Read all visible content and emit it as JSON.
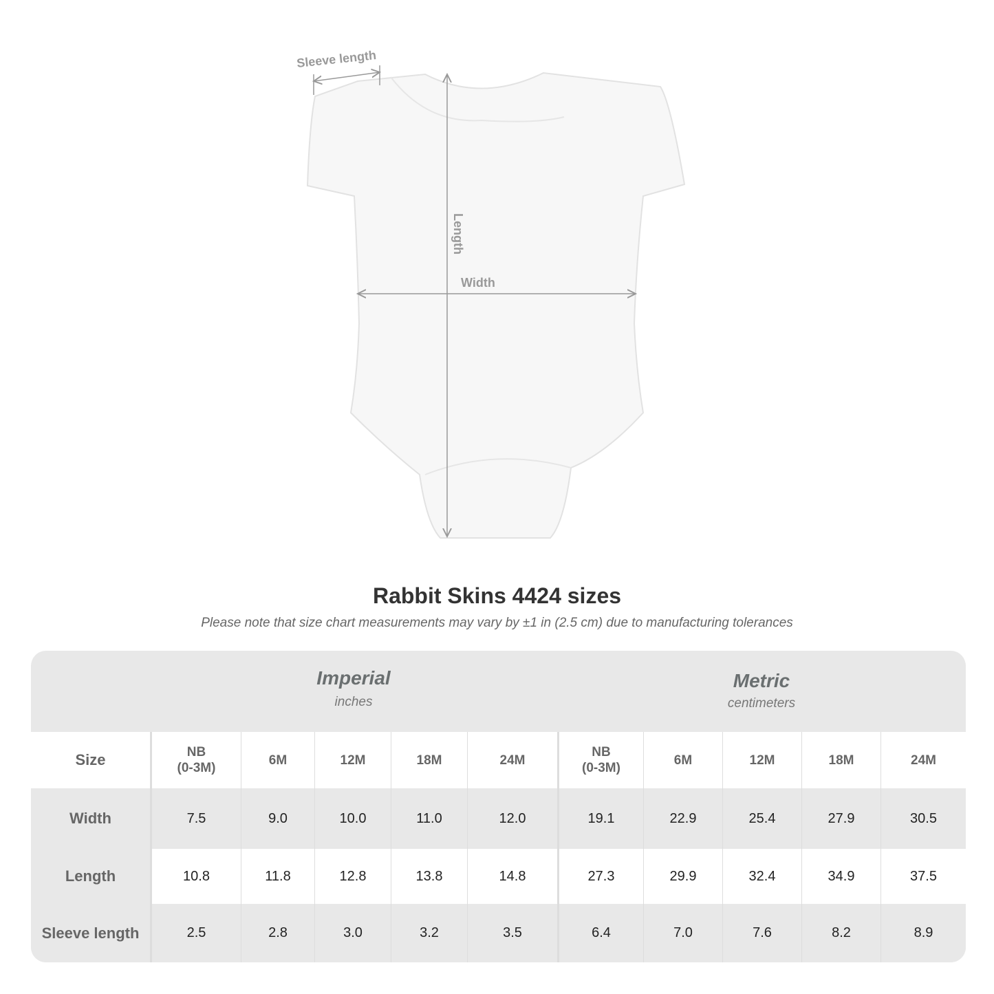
{
  "diagram": {
    "sleeve_label": "Sleeve length",
    "length_label": "Length",
    "width_label": "Width"
  },
  "title": "Rabbit Skins 4424 sizes",
  "note": "Please note that size chart measurements may vary by ±1 in (2.5 cm) due to manufacturing tolerances",
  "imperial": {
    "name": "Imperial",
    "unit": "inches"
  },
  "metric": {
    "name": "Metric",
    "unit": "centimeters"
  },
  "size_label": "Size",
  "sizes": [
    [
      "NB",
      "(0-3M)"
    ],
    [
      "6M"
    ],
    [
      "12M"
    ],
    [
      "18M"
    ],
    [
      "24M"
    ]
  ],
  "rows": [
    {
      "label": "Width",
      "imperial": [
        "7.5",
        "9.0",
        "10.0",
        "11.0",
        "12.0"
      ],
      "metric": [
        "19.1",
        "22.9",
        "25.4",
        "27.9",
        "30.5"
      ]
    },
    {
      "label": "Length",
      "imperial": [
        "10.8",
        "11.8",
        "12.8",
        "13.8",
        "14.8"
      ],
      "metric": [
        "27.3",
        "29.9",
        "32.4",
        "34.9",
        "37.5"
      ]
    },
    {
      "label": "Sleeve length",
      "imperial": [
        "2.5",
        "2.8",
        "3.0",
        "3.2",
        "3.5"
      ],
      "metric": [
        "6.4",
        "7.0",
        "7.6",
        "8.2",
        "8.9"
      ]
    }
  ]
}
